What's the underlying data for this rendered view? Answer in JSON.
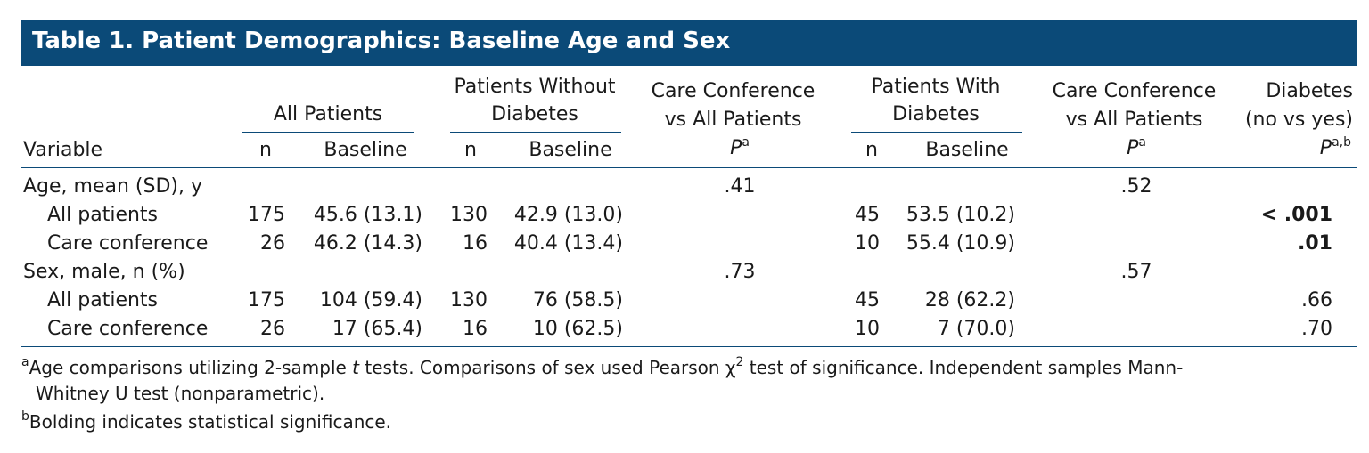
{
  "title": "Table 1. Patient Demographics: Baseline Age and Sex",
  "header": {
    "variable": "Variable",
    "all_patients": "All Patients",
    "without_diabetes": [
      "Patients Without",
      "Diabetes"
    ],
    "care_vs_all_1": [
      "Care Conference",
      "vs All Patients"
    ],
    "with_diabetes": [
      "Patients With",
      "Diabetes"
    ],
    "care_vs_all_2": [
      "Care Conference",
      "vs All Patients"
    ],
    "diabetes_cmp": [
      "Diabetes",
      "(no vs yes)"
    ],
    "n": "n",
    "baseline": "Baseline",
    "p": "P",
    "p_sup_a": "a",
    "p_sup_ab": "a,b"
  },
  "rows": {
    "age": {
      "label": "Age, mean (SD), y",
      "p1": ".41",
      "p2": ".52"
    },
    "age_all": {
      "label": "All patients",
      "n1": "175",
      "b1": "45.6 (13.1)",
      "n2": "130",
      "b2": "42.9 (13.0)",
      "n3": "45",
      "b3": "53.5 (10.2)",
      "p3": "< .001"
    },
    "age_care": {
      "label": "Care conference",
      "n1": "26",
      "b1": "46.2 (14.3)",
      "n2": "16",
      "b2": "40.4 (13.4)",
      "n3": "10",
      "b3": "55.4 (10.9)",
      "p3": ".01"
    },
    "sex": {
      "label": "Sex, male, n (%)",
      "p1": ".73",
      "p2": ".57"
    },
    "sex_all": {
      "label": "All patients",
      "n1": "175",
      "b1": "104 (59.4)",
      "n2": "130",
      "b2": "76 (58.5)",
      "n3": "45",
      "b3": "28 (62.2)",
      "p3": ".66"
    },
    "sex_care": {
      "label": "Care conference",
      "n1": "26",
      "b1": "17 (65.4)",
      "n2": "16",
      "b2": "10 (62.5)",
      "n3": "10",
      "b3": "7 (70.0)",
      "p3": ".70"
    }
  },
  "footnotes": {
    "a_mark": "a",
    "a_part1": "Age comparisons utilizing 2-sample ",
    "a_t": "t",
    "a_part2": " tests. Comparisons of sex used Pearson χ",
    "a_sq": "2",
    "a_part3": " test of significance. Independent samples Mann-",
    "a_line2": "Whitney U test (nonparametric).",
    "b_mark": "b",
    "b_text": "Bolding indicates statistical significance."
  }
}
